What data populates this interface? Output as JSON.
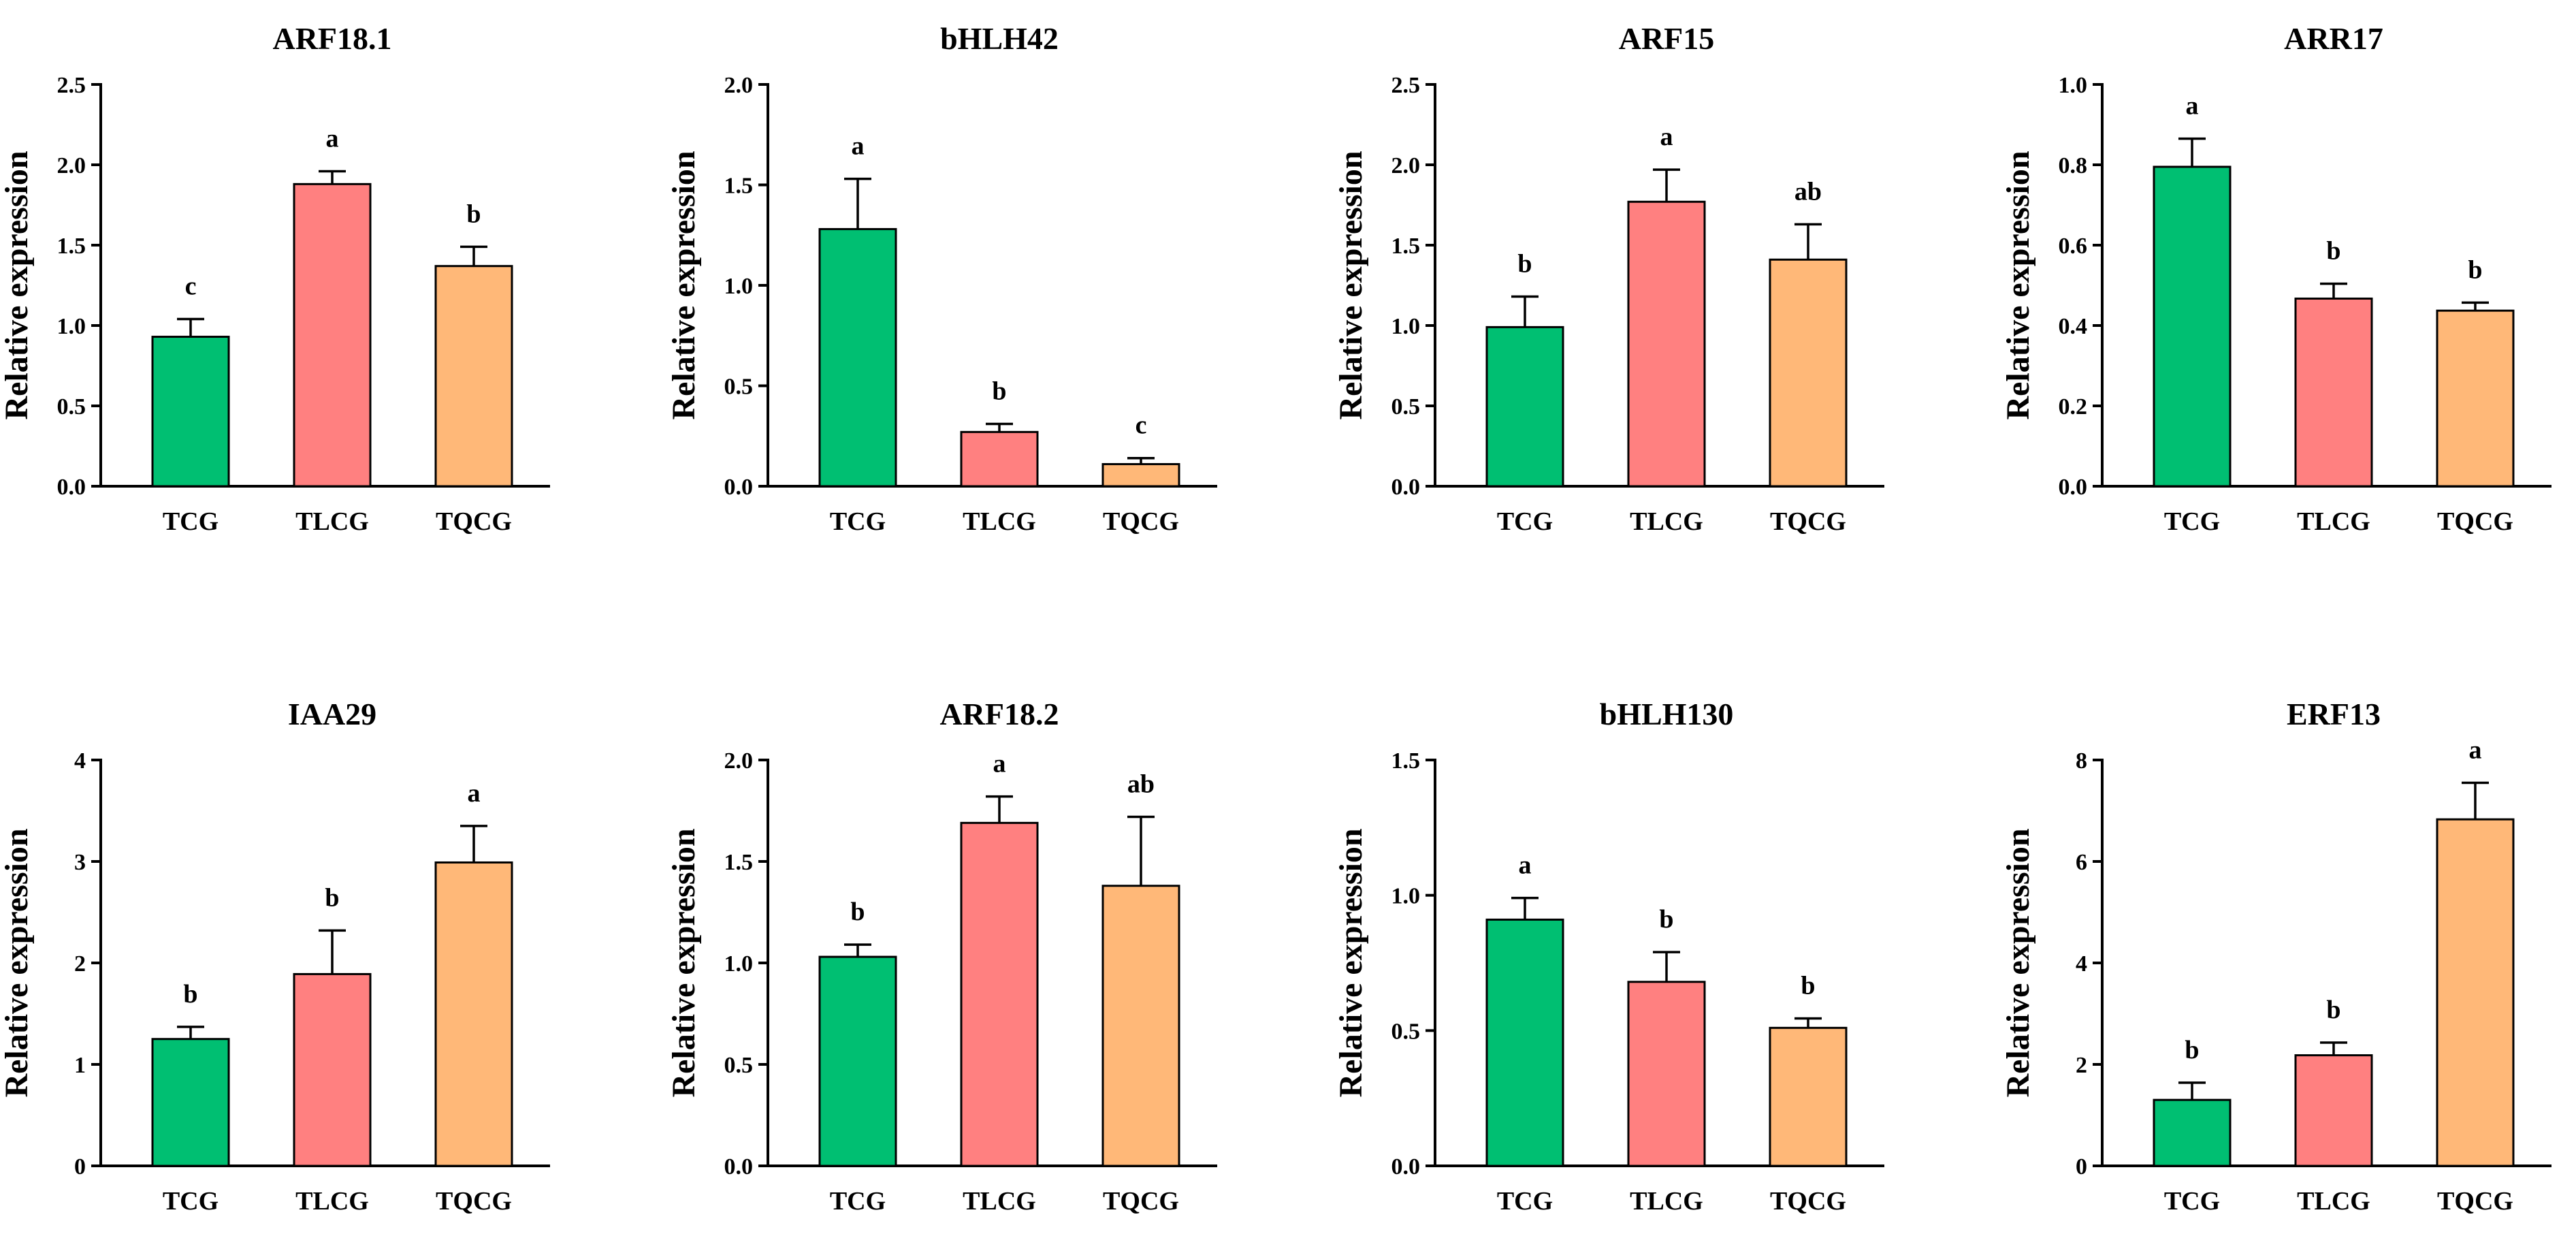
{
  "figure": {
    "ylabel": "Relative expression"
  },
  "colors": {
    "TCG": "#00BF72",
    "TLCG": "#FF8080",
    "TQCG": "#FFB878"
  },
  "chart_data": [
    {
      "type": "bar",
      "title": "ARF18.1",
      "xlabel": "",
      "ylabel": "Relative expression",
      "categories": [
        "TCG",
        "TLCG",
        "TQCG"
      ],
      "values": [
        0.93,
        1.88,
        1.37
      ],
      "errors": [
        0.11,
        0.08,
        0.12
      ],
      "significance": [
        "c",
        "a",
        "b"
      ],
      "ylim": [
        0,
        2.5
      ],
      "yticks": [
        "0.0",
        "0.5",
        "1.0",
        "1.5",
        "2.0",
        "2.5"
      ]
    },
    {
      "type": "bar",
      "title": "bHLH42",
      "xlabel": "",
      "ylabel": "Relative expression",
      "categories": [
        "TCG",
        "TLCG",
        "TQCG"
      ],
      "values": [
        1.28,
        0.27,
        0.11
      ],
      "errors": [
        0.25,
        0.04,
        0.03
      ],
      "significance": [
        "a",
        "b",
        "c"
      ],
      "ylim": [
        0,
        2.0
      ],
      "yticks": [
        "0.0",
        "0.5",
        "1.0",
        "1.5",
        "2.0"
      ]
    },
    {
      "type": "bar",
      "title": "ARF15",
      "xlabel": "",
      "ylabel": "Relative expression",
      "categories": [
        "TCG",
        "TLCG",
        "TQCG"
      ],
      "values": [
        0.99,
        1.77,
        1.41
      ],
      "errors": [
        0.19,
        0.2,
        0.22
      ],
      "significance": [
        "b",
        "a",
        "ab"
      ],
      "ylim": [
        0,
        2.5
      ],
      "yticks": [
        "0.0",
        "0.5",
        "1.0",
        "1.5",
        "2.0",
        "2.5"
      ]
    },
    {
      "type": "bar",
      "title": "ARR17",
      "xlabel": "",
      "ylabel": "Relative expression",
      "categories": [
        "TCG",
        "TLCG",
        "TQCG"
      ],
      "values": [
        0.795,
        0.467,
        0.437
      ],
      "errors": [
        0.07,
        0.037,
        0.02
      ],
      "significance": [
        "a",
        "b",
        "b"
      ],
      "ylim": [
        0,
        1.0
      ],
      "yticks": [
        "0.0",
        "0.2",
        "0.4",
        "0.6",
        "0.8",
        "1.0"
      ]
    },
    {
      "type": "bar",
      "title": "IAA29",
      "xlabel": "",
      "ylabel": "Relative expression",
      "categories": [
        "TCG",
        "TLCG",
        "TQCG"
      ],
      "values": [
        1.25,
        1.89,
        2.99
      ],
      "errors": [
        0.12,
        0.43,
        0.36
      ],
      "significance": [
        "b",
        "b",
        "a"
      ],
      "ylim": [
        0,
        4
      ],
      "yticks": [
        "0",
        "1",
        "2",
        "3",
        "4"
      ]
    },
    {
      "type": "bar",
      "title": "ARF18.2",
      "xlabel": "",
      "ylabel": "Relative expression",
      "categories": [
        "TCG",
        "TLCG",
        "TQCG"
      ],
      "values": [
        1.03,
        1.69,
        1.38
      ],
      "errors": [
        0.06,
        0.13,
        0.34
      ],
      "significance": [
        "b",
        "a",
        "ab"
      ],
      "ylim": [
        0,
        2.0
      ],
      "yticks": [
        "0.0",
        "0.5",
        "1.0",
        "1.5",
        "2.0"
      ]
    },
    {
      "type": "bar",
      "title": "bHLH130",
      "xlabel": "",
      "ylabel": "Relative expression",
      "categories": [
        "TCG",
        "TLCG",
        "TQCG"
      ],
      "values": [
        0.91,
        0.68,
        0.51
      ],
      "errors": [
        0.08,
        0.11,
        0.035
      ],
      "significance": [
        "a",
        "b",
        "b"
      ],
      "ylim": [
        0,
        1.5
      ],
      "yticks": [
        "0.0",
        "0.5",
        "1.0",
        "1.5"
      ]
    },
    {
      "type": "bar",
      "title": "ERF13",
      "xlabel": "",
      "ylabel": "Relative expression",
      "categories": [
        "TCG",
        "TLCG",
        "TQCG"
      ],
      "values": [
        1.3,
        2.18,
        6.83
      ],
      "errors": [
        0.34,
        0.25,
        0.72
      ],
      "significance": [
        "b",
        "b",
        "a"
      ],
      "ylim": [
        0,
        8
      ],
      "yticks": [
        "0",
        "2",
        "4",
        "6",
        "8"
      ]
    }
  ]
}
